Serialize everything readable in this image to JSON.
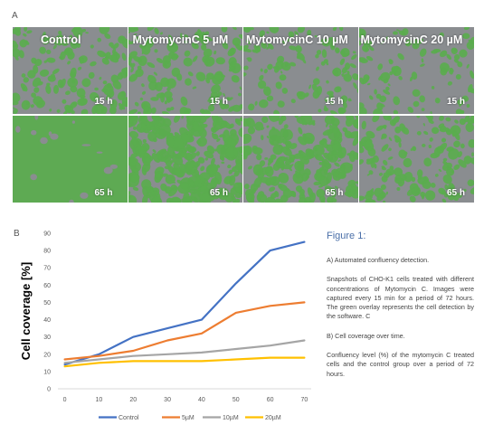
{
  "panel_a": {
    "letter": "A",
    "conditions": [
      "Control",
      "MytomycinC 5 µM",
      "MytomycinC 10 µM",
      "MytomycinC 20 µM"
    ],
    "times": [
      "15 h",
      "65 h"
    ],
    "coverage_levels": [
      [
        0.3,
        0.28,
        0.22,
        0.2
      ],
      [
        0.82,
        0.55,
        0.42,
        0.3
      ]
    ],
    "colors": {
      "background": "#8a8d90",
      "overlay": "#5aac4e"
    }
  },
  "panel_b": {
    "letter": "B"
  },
  "chart_data": {
    "type": "line",
    "title": "",
    "xlabel": "",
    "ylabel": "Cell coverage [%]",
    "x": [
      0,
      10,
      20,
      30,
      40,
      50,
      60,
      70
    ],
    "xticks": [
      "0",
      "10",
      "20",
      "30",
      "40",
      "50",
      "60",
      "70"
    ],
    "yticks": [
      "0",
      "10",
      "20",
      "30",
      "40",
      "50",
      "60",
      "70",
      "80",
      "90"
    ],
    "xlim": [
      -2,
      72
    ],
    "ylim": [
      0,
      90
    ],
    "grid": false,
    "legend_position": "bottom",
    "series": [
      {
        "name": "Control",
        "color": "#4472c4",
        "values": [
          14,
          20,
          30,
          35,
          40,
          61,
          80,
          85
        ]
      },
      {
        "name": "5µM",
        "color": "#ed7d31",
        "values": [
          17,
          19,
          22,
          28,
          32,
          44,
          48,
          50
        ]
      },
      {
        "name": "10µM",
        "color": "#a5a5a5",
        "values": [
          15,
          17,
          19,
          20,
          21,
          23,
          25,
          28
        ]
      },
      {
        "name": "20µM",
        "color": "#ffc000",
        "values": [
          13,
          15,
          16,
          16,
          16,
          17,
          18,
          18
        ]
      }
    ]
  },
  "caption": {
    "title": "Figure 1:",
    "paragraphs": [
      "A) Automated confluency detection.",
      "Snapshots of CHO-K1 cells treated with different concentrations of Mytomycin C. Images were captured every 15 min for a period of 72 hours. The green overlay represents the cell detection by the software. C",
      "B) Cell coverage over time.",
      "Confluency level (%) of the mytomycin C treated cells and the control group over a period of 72 hours."
    ]
  }
}
